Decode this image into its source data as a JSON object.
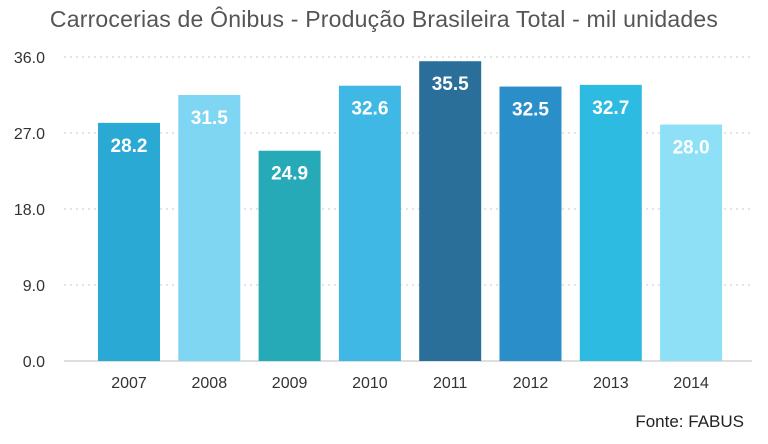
{
  "chart_data": {
    "type": "bar",
    "title": "Carrocerias de Ônibus - Produção Brasileira Total - mil unidades",
    "categories": [
      "2007",
      "2008",
      "2009",
      "2010",
      "2011",
      "2012",
      "2013",
      "2014"
    ],
    "values": [
      28.2,
      31.5,
      24.9,
      32.6,
      35.5,
      32.5,
      32.7,
      28.0
    ],
    "data_labels": [
      "28.2",
      "31.5",
      "24.9",
      "32.6",
      "35.5",
      "32.5",
      "32.7",
      "28.0"
    ],
    "bar_colors": [
      "#29a9d3",
      "#7fd6f2",
      "#26aab8",
      "#3fb8e6",
      "#2a6e9a",
      "#2a8fc8",
      "#2ebbe2",
      "#8ee0f6"
    ],
    "ylim": [
      0,
      36
    ],
    "yticks": [
      0,
      9,
      18,
      27,
      36
    ],
    "ytick_labels": [
      "0.0",
      "9.0",
      "18.0",
      "27.0",
      "36.0"
    ],
    "grid": true,
    "xlabel": "",
    "ylabel": ""
  },
  "source": "Fonte: FABUS"
}
